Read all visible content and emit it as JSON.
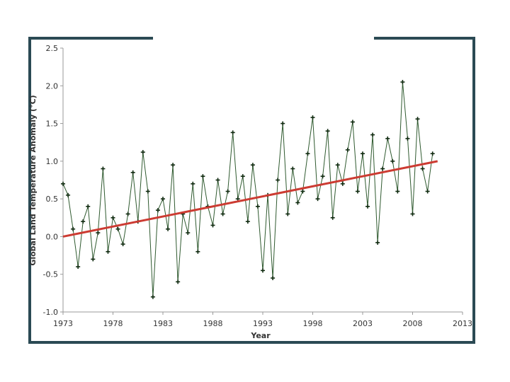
{
  "colors": {
    "frame": "#2b4a54",
    "series": "#2f5a2f",
    "marker": "#0f2a0f",
    "trend": "#cc3b32",
    "axis": "#9a9a9a"
  },
  "chart_data": {
    "type": "line",
    "title": "",
    "xlabel": "Year",
    "ylabel": "Global Land Temperature Anomaly (°C)",
    "xlim": [
      1973,
      2013
    ],
    "ylim": [
      -1.0,
      2.5
    ],
    "xticks": [
      "1973",
      "1978",
      "1983",
      "1988",
      "1993",
      "1998",
      "2003",
      "2008",
      "2013"
    ],
    "yticks": [
      "2.5",
      "2.0",
      "1.5",
      "1.0",
      "0.5",
      "0.0",
      "-0.5",
      "-1.0"
    ],
    "grid": false,
    "legend": "none",
    "series": [
      {
        "values_note": "",
        "x": [
          1973.0,
          1973.5,
          1974.0,
          1974.5,
          1975.0,
          1975.5,
          1976.0,
          1976.5,
          1977.0,
          1977.5,
          1978.0,
          1978.5,
          1979.0,
          1979.5,
          1980.0,
          1980.5,
          1981.0,
          1981.5,
          1982.0,
          1982.5,
          1983.0,
          1983.5,
          1984.0,
          1984.5,
          1985.0,
          1985.5,
          1986.0,
          1986.5,
          1987.0,
          1987.5,
          1988.0,
          1988.5,
          1989.0,
          1989.5,
          1990.0,
          1990.5,
          1991.0,
          1991.5,
          1992.0,
          1992.5,
          1993.0,
          1993.5,
          1994.0,
          1994.5,
          1995.0,
          1995.5,
          1996.0,
          1996.5,
          1997.0,
          1997.5,
          1998.0,
          1998.5,
          1999.0,
          1999.5,
          2000.0,
          2000.5,
          2001.0,
          2001.5,
          2002.0,
          2002.5,
          2003.0,
          2003.5,
          2004.0,
          2004.5,
          2005.0,
          2005.5,
          2006.0,
          2006.5,
          2007.0,
          2007.5,
          2008.0,
          2008.5,
          2009.0,
          2009.5,
          2010.0
        ],
        "y": [
          0.7,
          0.55,
          0.1,
          -0.4,
          0.2,
          0.4,
          -0.3,
          0.05,
          0.9,
          -0.2,
          0.25,
          0.1,
          -0.1,
          0.3,
          0.85,
          0.2,
          1.12,
          0.6,
          -0.8,
          0.35,
          0.5,
          0.1,
          0.95,
          -0.6,
          0.3,
          0.05,
          0.7,
          -0.2,
          0.8,
          0.4,
          0.15,
          0.75,
          0.3,
          0.6,
          1.38,
          0.5,
          0.8,
          0.2,
          0.95,
          0.4,
          -0.45,
          0.55,
          -0.55,
          0.75,
          1.5,
          0.3,
          0.9,
          0.45,
          0.6,
          1.1,
          1.58,
          0.5,
          0.8,
          1.4,
          0.25,
          0.95,
          0.7,
          1.15,
          1.52,
          0.6,
          1.1,
          0.4,
          1.35,
          -0.08,
          0.9,
          1.3,
          1.0,
          0.6,
          2.05,
          1.3,
          0.3,
          1.56,
          0.9,
          0.6,
          1.1
        ]
      }
    ],
    "trend": {
      "x": [
        1973,
        2010.5
      ],
      "y": [
        0.0,
        1.0
      ]
    }
  }
}
